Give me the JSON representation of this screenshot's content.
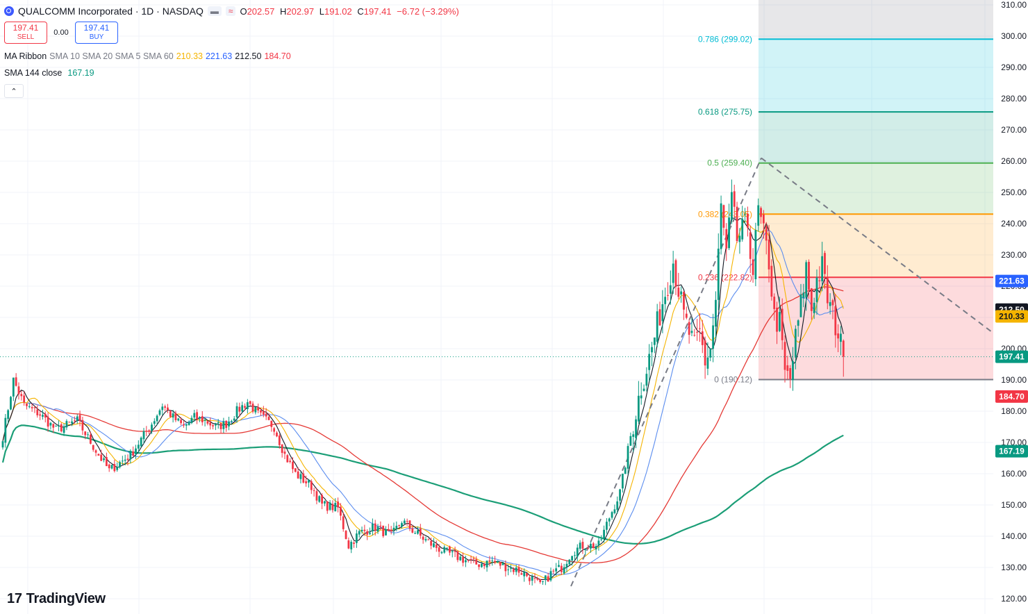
{
  "header": {
    "title": "QUALCOMM Incorporated · 1D · NASDAQ",
    "ohlc": [
      {
        "label": "O",
        "value": "202.57"
      },
      {
        "label": "H",
        "value": "202.97"
      },
      {
        "label": "L",
        "value": "191.02"
      },
      {
        "label": "C",
        "value": "197.41"
      }
    ],
    "change": "−6.72 (−3.29%)",
    "chips": [
      "▬",
      "≈"
    ]
  },
  "trade": {
    "sell_price": "197.41",
    "sell_label": "SELL",
    "spread": "0.00",
    "buy_price": "197.41",
    "buy_label": "BUY"
  },
  "indicators": {
    "ribbon_name": "MA Ribbon",
    "ribbon_params": "SMA 10 SMA 20 SMA 5 SMA 60",
    "ribbon_values": [
      "210.33",
      "221.63",
      "212.50",
      "184.70"
    ],
    "sma_name": "SMA 144 close",
    "sma_value": "167.19",
    "collapse_icon": "chevron-up-icon"
  },
  "brand": {
    "name": "TradingView",
    "mark": "17"
  },
  "colors": {
    "up": "#089981",
    "down": "#f23645",
    "sma10": "#f5b400",
    "sma20": "#5b8def",
    "sma5": "#131722",
    "sma60": "#e53935",
    "sma144": "#1b9e77"
  },
  "chart_data": {
    "type": "candlestick",
    "symbol": "QCOM",
    "interval": "1D",
    "y_axis_ticks": [
      120,
      130,
      140,
      150,
      160,
      170,
      180,
      190,
      200,
      210,
      220,
      230,
      240,
      250,
      260,
      270,
      280,
      290,
      300,
      310
    ],
    "ylim": [
      118,
      313
    ],
    "last_price": 197.41,
    "fibonacci": [
      {
        "ratio": 0,
        "price": 190.12,
        "label": "0 (190.12)",
        "color": "#787b86"
      },
      {
        "ratio": 0.236,
        "price": 222.82,
        "label": "0.236 (222.82)",
        "color": "#f23645"
      },
      {
        "ratio": 0.382,
        "price": 243.05,
        "label": "0.382 (243.05)",
        "color": "#ff9800"
      },
      {
        "ratio": 0.5,
        "price": 259.4,
        "label": "0.5 (259.40)",
        "color": "#4caf50"
      },
      {
        "ratio": 0.618,
        "price": 275.75,
        "label": "0.618 (275.75)",
        "color": "#089981"
      },
      {
        "ratio": 0.786,
        "price": 299.02,
        "label": "0.786 (299.02)",
        "color": "#00bcd4"
      }
    ],
    "price_tags": [
      {
        "label": "221.63",
        "price": 221.63,
        "color": "#2962ff"
      },
      {
        "label": "212.50",
        "price": 212.5,
        "color": "#131722"
      },
      {
        "label": "210.33",
        "price": 210.33,
        "color": "#f5b400",
        "text_color": "#131722"
      },
      {
        "label": "197.41",
        "price": 197.41,
        "color": "#089981"
      },
      {
        "label": "184.70",
        "price": 184.7,
        "color": "#f23645"
      },
      {
        "label": "167.19",
        "price": 167.19,
        "color": "#089981"
      }
    ],
    "waypoints": [
      [
        0,
        172
      ],
      [
        4,
        190
      ],
      [
        8,
        182
      ],
      [
        14,
        179
      ],
      [
        20,
        174
      ],
      [
        28,
        177
      ],
      [
        36,
        166
      ],
      [
        40,
        161
      ],
      [
        48,
        166
      ],
      [
        56,
        176
      ],
      [
        60,
        182
      ],
      [
        64,
        178
      ],
      [
        68,
        175
      ],
      [
        72,
        178
      ],
      [
        76,
        177
      ],
      [
        80,
        175
      ],
      [
        84,
        176
      ],
      [
        88,
        180
      ],
      [
        92,
        183
      ],
      [
        96,
        179
      ],
      [
        102,
        175
      ],
      [
        106,
        166
      ],
      [
        110,
        160
      ],
      [
        116,
        156
      ],
      [
        120,
        150
      ],
      [
        126,
        149
      ],
      [
        130,
        137
      ],
      [
        134,
        141
      ],
      [
        140,
        143
      ],
      [
        146,
        140
      ],
      [
        150,
        145
      ],
      [
        154,
        142
      ],
      [
        160,
        138
      ],
      [
        166,
        135
      ],
      [
        172,
        133
      ],
      [
        178,
        131
      ],
      [
        184,
        132
      ],
      [
        190,
        130
      ],
      [
        194,
        129
      ],
      [
        198,
        127
      ],
      [
        202,
        124
      ],
      [
        206,
        128
      ],
      [
        210,
        130
      ],
      [
        214,
        135
      ],
      [
        218,
        137
      ],
      [
        224,
        137
      ],
      [
        228,
        146
      ],
      [
        232,
        154
      ],
      [
        236,
        172
      ],
      [
        240,
        188
      ],
      [
        244,
        200
      ],
      [
        248,
        215
      ],
      [
        252,
        228
      ],
      [
        256,
        210
      ],
      [
        260,
        200
      ],
      [
        262,
        205
      ],
      [
        264,
        196
      ],
      [
        266,
        200
      ],
      [
        268,
        215
      ],
      [
        270,
        245
      ],
      [
        272,
        230
      ],
      [
        274,
        247
      ],
      [
        276,
        235
      ],
      [
        280,
        240
      ],
      [
        282,
        225
      ],
      [
        284,
        244
      ],
      [
        288,
        228
      ],
      [
        290,
        210
      ],
      [
        292,
        208
      ],
      [
        294,
        192
      ],
      [
        296,
        190
      ],
      [
        298,
        203
      ],
      [
        300,
        214
      ],
      [
        302,
        226
      ],
      [
        304,
        213
      ],
      [
        306,
        222
      ],
      [
        308,
        226
      ],
      [
        310,
        216
      ],
      [
        314,
        205
      ],
      [
        316,
        197
      ]
    ]
  }
}
